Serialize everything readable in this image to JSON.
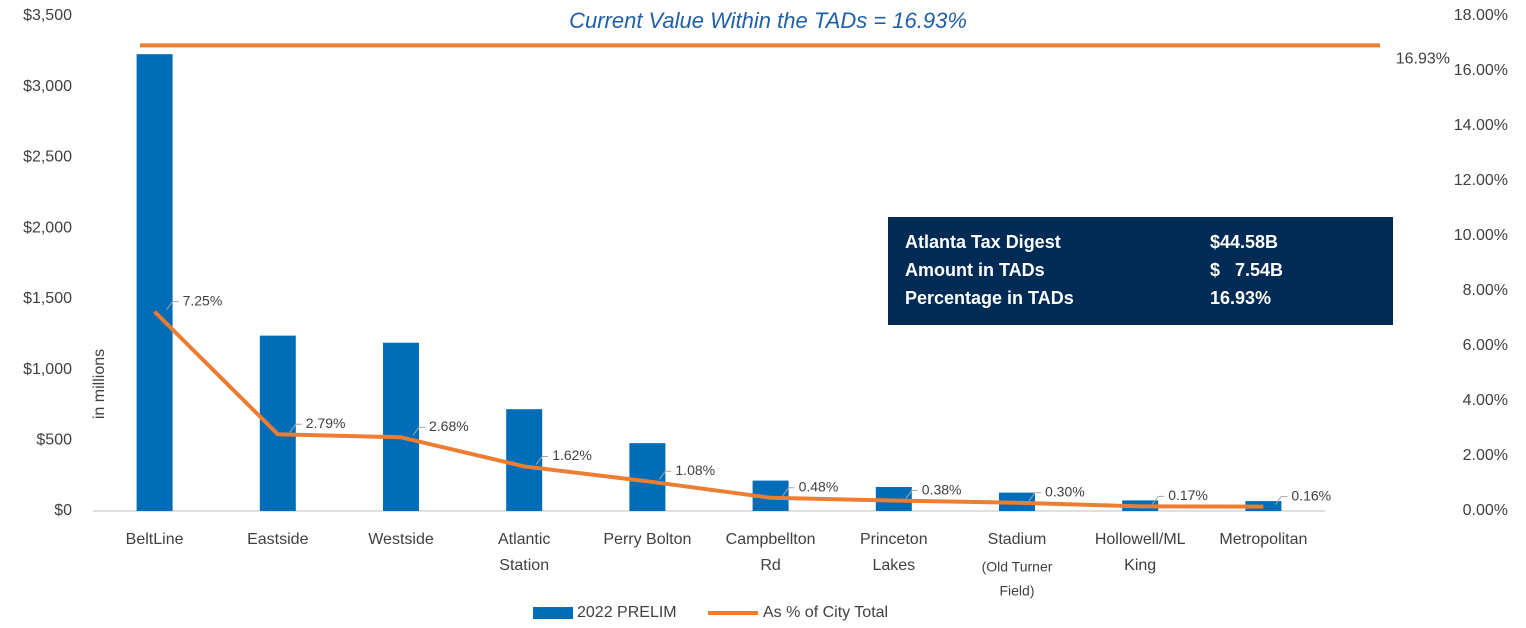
{
  "chart_data": {
    "type": "bar_line",
    "title": "Current Value Within the TADs = 16.93%",
    "y_label": "in millions",
    "categories": [
      [
        "BeltLine"
      ],
      [
        "Eastside"
      ],
      [
        "Westside"
      ],
      [
        "Atlantic",
        "Station"
      ],
      [
        "Perry Bolton"
      ],
      [
        "Campbellton",
        "Rd"
      ],
      [
        "Princeton",
        "Lakes"
      ],
      [
        "Stadium",
        "(Old Turner",
        "Field)"
      ],
      [
        "Hollowell/ML",
        "King"
      ],
      [
        "Metropolitan"
      ]
    ],
    "series": [
      {
        "name": "2022 PRELIM",
        "type": "bar",
        "color": "#006db8",
        "values": [
          3230,
          1240,
          1190,
          720,
          480,
          215,
          170,
          130,
          75,
          70
        ]
      },
      {
        "name": "As % of City Total",
        "type": "line",
        "axis": "y2",
        "color": "#ed7d31",
        "values": [
          7.25,
          2.79,
          2.68,
          1.62,
          1.08,
          0.48,
          0.38,
          0.3,
          0.17,
          0.16
        ],
        "value_labels": [
          "7.25%",
          "2.79%",
          "2.68%",
          "1.62%",
          "1.08%",
          "0.48%",
          "0.38%",
          "0.30%",
          "0.17%",
          "0.16%"
        ]
      }
    ],
    "reference_line": {
      "value": 16.93,
      "label": "16.93%",
      "axis": "y2",
      "color": "#ed7d31"
    },
    "ylim": [
      0,
      3500
    ],
    "yticks": [
      {
        "value": 0,
        "label": "$0"
      },
      {
        "value": 500,
        "label": "$500"
      },
      {
        "value": 1000,
        "label": "$1,000"
      },
      {
        "value": 1500,
        "label": "$1,500"
      },
      {
        "value": 2000,
        "label": "$2,000"
      },
      {
        "value": 2500,
        "label": "$2,500"
      },
      {
        "value": 3000,
        "label": "$3,000"
      },
      {
        "value": 3500,
        "label": "$3,500"
      }
    ],
    "y2lim": [
      0,
      18
    ],
    "y2ticks": [
      {
        "value": 0,
        "label": "0.00%"
      },
      {
        "value": 2,
        "label": "2.00%"
      },
      {
        "value": 4,
        "label": "4.00%"
      },
      {
        "value": 6,
        "label": "6.00%"
      },
      {
        "value": 8,
        "label": "8.00%"
      },
      {
        "value": 10,
        "label": "10.00%"
      },
      {
        "value": 12,
        "label": "12.00%"
      },
      {
        "value": 14,
        "label": "14.00%"
      },
      {
        "value": 16,
        "label": "16.00%"
      },
      {
        "value": 18,
        "label": "18.00%"
      }
    ],
    "info_box": {
      "rows": [
        [
          "Atlanta Tax Digest",
          "$44.58B"
        ],
        [
          "Amount in TADs",
          "$   7.54B"
        ],
        [
          "Percentage in TADs",
          "16.93%"
        ]
      ]
    },
    "legend": "bottom"
  }
}
